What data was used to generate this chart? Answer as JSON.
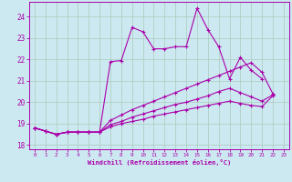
{
  "xlabel": "Windchill (Refroidissement éolien,°C)",
  "bg_color": "#cce8f0",
  "grid_color": "#aaccbb",
  "line_color": "#aa00aa",
  "xlim": [
    -0.5,
    23.5
  ],
  "ylim": [
    17.8,
    24.7
  ],
  "yticks": [
    18,
    19,
    20,
    21,
    22,
    23,
    24
  ],
  "xticks": [
    0,
    1,
    2,
    3,
    4,
    5,
    6,
    7,
    8,
    9,
    10,
    11,
    12,
    13,
    14,
    15,
    16,
    17,
    18,
    19,
    20,
    21,
    22,
    23
  ],
  "line1": [
    18.8,
    18.65,
    18.5,
    18.6,
    18.6,
    18.6,
    18.6,
    21.9,
    21.95,
    23.5,
    23.3,
    22.5,
    22.5,
    22.6,
    22.6,
    24.4,
    23.4,
    22.6,
    21.1,
    22.1,
    21.5,
    21.1
  ],
  "line2": [
    18.8,
    18.65,
    18.5,
    18.6,
    18.6,
    18.6,
    18.6,
    19.15,
    19.4,
    19.65,
    19.85,
    20.05,
    20.25,
    20.45,
    20.65,
    20.85,
    21.05,
    21.25,
    21.45,
    21.65,
    21.85,
    21.4,
    20.4
  ],
  "line3": [
    18.8,
    18.65,
    18.5,
    18.6,
    18.6,
    18.6,
    18.6,
    18.95,
    19.1,
    19.3,
    19.45,
    19.6,
    19.75,
    19.9,
    20.0,
    20.15,
    20.3,
    20.5,
    20.65,
    20.45,
    20.25,
    20.05,
    20.35
  ],
  "line4": [
    18.8,
    18.65,
    18.5,
    18.6,
    18.6,
    18.6,
    18.6,
    18.85,
    19.0,
    19.1,
    19.2,
    19.35,
    19.45,
    19.55,
    19.65,
    19.75,
    19.85,
    19.95,
    20.05,
    19.95,
    19.85,
    19.8,
    20.3
  ]
}
